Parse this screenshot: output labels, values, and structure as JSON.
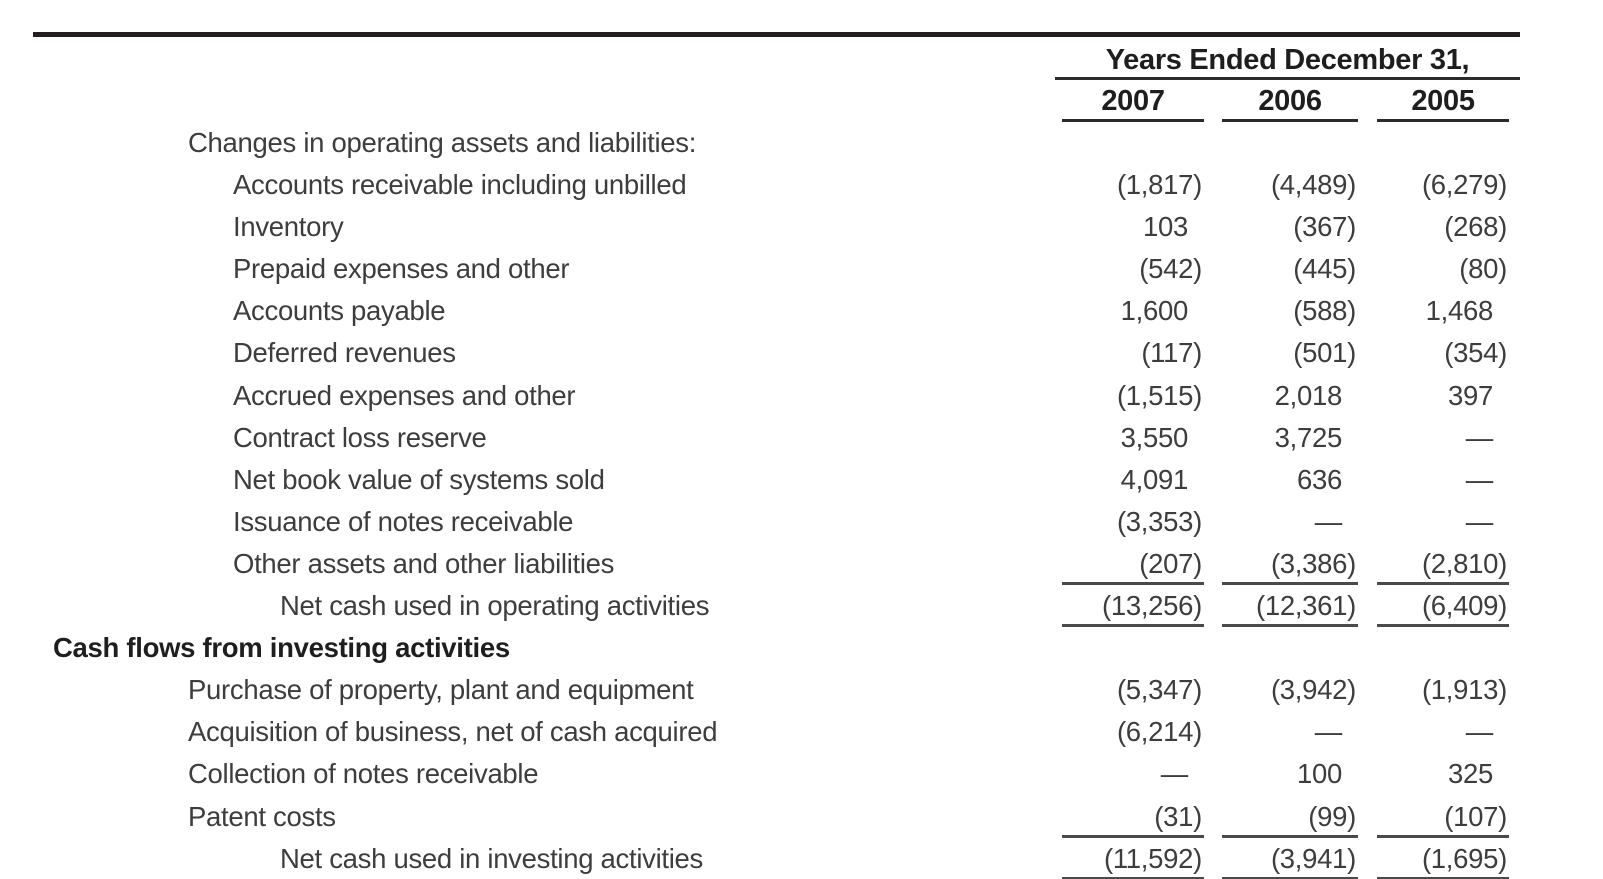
{
  "colors": {
    "background": "#ffffff",
    "text_regular": "#3d3d3d",
    "text_bold": "#1e1e1e",
    "rule_heavy": "#231f20",
    "rule_header": "#2b2b2b",
    "rule_data": "#4a4a4a"
  },
  "table": {
    "header": {
      "years_ended_label": "Years Ended December 31,",
      "columns": [
        "2007",
        "2006",
        "2005"
      ]
    },
    "rows": [
      {
        "label": "Changes in operating assets and liabilities:",
        "indent": 1,
        "bold": false,
        "underline": false,
        "values": [
          "",
          "",
          ""
        ]
      },
      {
        "label": "Accounts receivable including unbilled",
        "indent": 2,
        "bold": false,
        "underline": false,
        "values": [
          "(1,817)",
          "(4,489)",
          "(6,279)"
        ]
      },
      {
        "label": "Inventory",
        "indent": 2,
        "bold": false,
        "underline": false,
        "values": [
          "103",
          "(367)",
          "(268)"
        ]
      },
      {
        "label": "Prepaid expenses and other",
        "indent": 2,
        "bold": false,
        "underline": false,
        "values": [
          "(542)",
          "(445)",
          "(80)"
        ]
      },
      {
        "label": "Accounts payable",
        "indent": 2,
        "bold": false,
        "underline": false,
        "values": [
          "1,600",
          "(588)",
          "1,468"
        ]
      },
      {
        "label": "Deferred revenues",
        "indent": 2,
        "bold": false,
        "underline": false,
        "values": [
          "(117)",
          "(501)",
          "(354)"
        ]
      },
      {
        "label": "Accrued expenses and other",
        "indent": 2,
        "bold": false,
        "underline": false,
        "values": [
          "(1,515)",
          "2,018",
          "397"
        ]
      },
      {
        "label": "Contract loss reserve",
        "indent": 2,
        "bold": false,
        "underline": false,
        "values": [
          "3,550",
          "3,725",
          "—"
        ]
      },
      {
        "label": "Net book value of systems sold",
        "indent": 2,
        "bold": false,
        "underline": false,
        "values": [
          "4,091",
          "636",
          "—"
        ]
      },
      {
        "label": "Issuance of notes receivable",
        "indent": 2,
        "bold": false,
        "underline": false,
        "values": [
          "(3,353)",
          "—",
          "—"
        ]
      },
      {
        "label": "Other assets and other liabilities",
        "indent": 2,
        "bold": false,
        "underline": true,
        "values": [
          "(207)",
          "(3,386)",
          "(2,810)"
        ]
      },
      {
        "label": "Net cash used in operating activities",
        "indent": 3,
        "bold": false,
        "underline": true,
        "values": [
          "(13,256)",
          "(12,361)",
          "(6,409)"
        ]
      },
      {
        "label": "Cash flows from investing activities",
        "indent": 0,
        "bold": true,
        "underline": false,
        "values": [
          "",
          "",
          ""
        ]
      },
      {
        "label": "Purchase of property, plant and equipment",
        "indent": 1,
        "bold": false,
        "underline": false,
        "values": [
          "(5,347)",
          "(3,942)",
          "(1,913)"
        ]
      },
      {
        "label": "Acquisition of business, net of cash acquired",
        "indent": 1,
        "bold": false,
        "underline": false,
        "values": [
          "(6,214)",
          "—",
          "—"
        ]
      },
      {
        "label": "Collection of notes receivable",
        "indent": 1,
        "bold": false,
        "underline": false,
        "values": [
          "—",
          "100",
          "325"
        ]
      },
      {
        "label": "Patent costs",
        "indent": 1,
        "bold": false,
        "underline": true,
        "values": [
          "(31)",
          "(99)",
          "(107)"
        ]
      },
      {
        "label": "Net cash used in investing activities",
        "indent": 3,
        "bold": false,
        "underline": true,
        "values": [
          "(11,592)",
          "(3,941)",
          "(1,695)"
        ]
      }
    ]
  }
}
